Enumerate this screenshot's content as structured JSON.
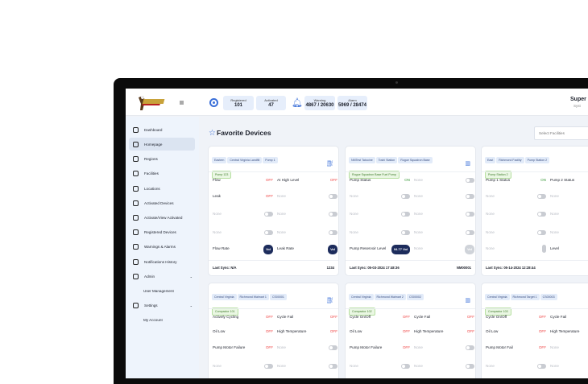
{
  "header": {
    "stats": [
      {
        "label": "Registered",
        "value": "101"
      },
      {
        "label": "Activated",
        "value": "47"
      },
      {
        "label": "Warning",
        "value": "4867 / 20630"
      },
      {
        "label": "Alarm",
        "value": "5969 / 28474"
      }
    ],
    "user_name": "Super",
    "user_role": "Syst"
  },
  "sidebar": {
    "items": [
      {
        "label": "Dashboard"
      },
      {
        "label": "Homepage",
        "active": true
      },
      {
        "label": "Regions"
      },
      {
        "label": "Facilities"
      },
      {
        "label": "Locations"
      },
      {
        "label": "Activated Devices"
      },
      {
        "label": "Activate/View Activated"
      },
      {
        "label": "Registered Devices"
      },
      {
        "label": "Warnings & Alarms"
      },
      {
        "label": "Notifications History"
      },
      {
        "label": "Admin",
        "expandable": true
      },
      {
        "label": "User Management",
        "sub": true
      },
      {
        "label": "Settings",
        "expandable": true
      },
      {
        "label": "My Account",
        "sub": true
      }
    ]
  },
  "main": {
    "title": "Favorite Devices",
    "select_placeholder": "Select Facilities",
    "cards": [
      {
        "tags": [
          "Eastern",
          "Central Virginia Landfill",
          "Pump 1"
        ],
        "device": "Pump 123",
        "icon": "pump-icon",
        "rows": [
          [
            {
              "label": "Flow",
              "value": "OFF"
            },
            {
              "label": "At High Level",
              "value": "OFF"
            }
          ],
          [
            {
              "label": "Leak",
              "value": "OFF"
            },
            {
              "label": "None",
              "toggle": true
            }
          ],
          [
            {
              "label": "None",
              "toggle": true
            },
            {
              "label": "None",
              "toggle": true
            }
          ],
          [
            {
              "label": "None",
              "toggle": true
            },
            {
              "label": "None",
              "toggle": true
            }
          ],
          [
            {
              "label": "Flow Rate",
              "pill": "Vol"
            },
            {
              "label": "Leak Rate",
              "pill": "Vol"
            }
          ]
        ],
        "last_sync": "Last Sync: N/A",
        "id": "1234"
      },
      {
        "tags": [
          "NMTest Tatooine",
          "Toshi Station",
          "Rogue Squadron Base"
        ],
        "device": "Rogue Squadron Base Fuel Pump",
        "icon": "chart-icon",
        "rows": [
          [
            {
              "label": "Pump Status",
              "value": "ON"
            },
            {
              "label": "None",
              "toggle": true
            }
          ],
          [
            {
              "label": "None",
              "toggle": true
            },
            {
              "label": "None",
              "toggle": true
            }
          ],
          [
            {
              "label": "None",
              "toggle": true
            },
            {
              "label": "None",
              "toggle": true
            }
          ],
          [
            {
              "label": "None",
              "toggle": true
            },
            {
              "label": "None",
              "toggle": true
            }
          ],
          [
            {
              "label": "Pump Reservoir Level",
              "pill": "94.77 Vol"
            },
            {
              "label": "None",
              "pill": "Vol",
              "disabled": true
            }
          ]
        ],
        "last_sync": "Last Sync: 05-03-2024 17:48:36",
        "id": "NM00001"
      },
      {
        "tags": [
          "East",
          "Richmond Facility",
          "Pump Station 2"
        ],
        "device": "Pump Station 2",
        "icon": "chart-icon",
        "rows": [
          [
            {
              "label": "Pump 1 Status",
              "value": "ON"
            },
            {
              "label": "Pump 2 Status"
            }
          ],
          [
            {
              "label": "None",
              "toggle": true
            },
            {
              "label": "None"
            }
          ],
          [
            {
              "label": "None",
              "toggle": true
            },
            {
              "label": "None"
            }
          ],
          [
            {
              "label": "None",
              "toggle": true
            },
            {
              "label": "None"
            }
          ],
          [
            {
              "label": "None",
              "vtoggle": true
            },
            {
              "label": "Level"
            }
          ]
        ],
        "last_sync": "Last Sync: 05-14-2024 12:28:44",
        "id": ""
      },
      {
        "tags": [
          "Central Virginia",
          "Richmond Walmart 1",
          "CS00001"
        ],
        "device": "Compactor 101",
        "icon": "pump-icon",
        "rows": [
          [
            {
              "label": "Actively Cycling",
              "value": "OFF"
            },
            {
              "label": "Cycle Fail",
              "value": "OFF"
            }
          ],
          [
            {
              "label": "Oil Low",
              "value": "OFF"
            },
            {
              "label": "High Temperature",
              "value": "OFF"
            }
          ],
          [
            {
              "label": "Pump Motor Failure",
              "value": "OFF"
            },
            {
              "label": "None",
              "toggle": true
            }
          ],
          [
            {
              "label": "None",
              "toggle": true
            },
            {
              "label": "None",
              "toggle": true
            }
          ]
        ]
      },
      {
        "tags": [
          "Central Virginia",
          "Richmond Walmart 2",
          "CS00002"
        ],
        "device": "Compactor 102",
        "icon": "chart-icon",
        "rows": [
          [
            {
              "label": "Cycle On/Off",
              "value": "OFF"
            },
            {
              "label": "Cycle Fail",
              "value": "OFF"
            }
          ],
          [
            {
              "label": "Oil Low",
              "value": "OFF"
            },
            {
              "label": "High Temperature",
              "value": "OFF"
            }
          ],
          [
            {
              "label": "Pump Motor Failure",
              "value": "OFF"
            },
            {
              "label": "None",
              "toggle": true
            }
          ],
          [
            {
              "label": "None",
              "toggle": true
            },
            {
              "label": "None",
              "toggle": true
            }
          ]
        ]
      },
      {
        "tags": [
          "Central Virginia",
          "Richmond Target 1",
          "CS00003"
        ],
        "device": "Compactor 103",
        "icon": "chart-icon",
        "rows": [
          [
            {
              "label": "Cycle On/Off",
              "value": "OFF"
            },
            {
              "label": "Cycle Fail"
            }
          ],
          [
            {
              "label": "Oil Low",
              "value": "OFF"
            },
            {
              "label": "High Temperature"
            }
          ],
          [
            {
              "label": "Pump Motor Fail",
              "value": "OFF"
            },
            {
              "label": "None"
            }
          ],
          [
            {
              "label": "None",
              "toggle": true
            },
            {
              "label": "None"
            }
          ]
        ]
      }
    ]
  },
  "colors": {
    "accent": "#3a6fd8",
    "off": "#f04848",
    "on": "#3c9a3c",
    "pill": "#1d2c5c",
    "sidebar_bg": "#eef4fc"
  }
}
